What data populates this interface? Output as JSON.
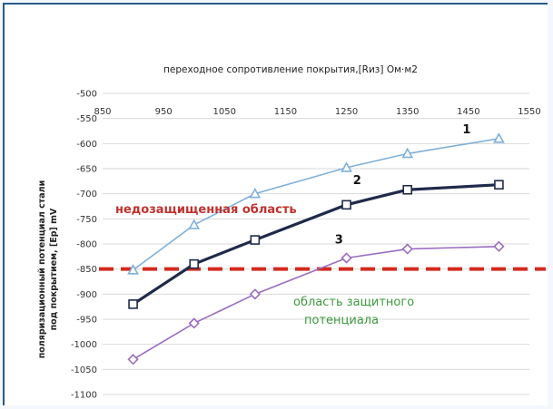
{
  "chart_data": {
    "type": "line",
    "title": "переходное сопротивление покрытия,[Rиз] Ом⋅м2",
    "ylabel_line1": "поляризационный потенциал стали",
    "ylabel_line2": "под покрытием, [Ep] mV",
    "xlim": [
      850,
      1550
    ],
    "xticks": [
      850,
      950,
      1050,
      1150,
      1250,
      1350,
      1450,
      1550
    ],
    "ylim": [
      -1100,
      -500
    ],
    "yticks": [
      -500,
      -550,
      -600,
      -650,
      -700,
      -750,
      -800,
      -850,
      -900,
      -950,
      -1000,
      -1050,
      -1100
    ],
    "grid": true,
    "threshold": {
      "value": -850,
      "color": "#d42a1e"
    },
    "series": [
      {
        "name": "1",
        "color": "#7fb0d8",
        "marker": "triangle",
        "x": [
          900,
          1000,
          1100,
          1250,
          1350,
          1500
        ],
        "y": [
          -852,
          -762,
          -700,
          -648,
          -620,
          -590
        ]
      },
      {
        "name": "2",
        "color": "#1f2a4a",
        "marker": "square",
        "x": [
          900,
          1000,
          1100,
          1250,
          1350,
          1500
        ],
        "y": [
          -920,
          -840,
          -792,
          -722,
          -692,
          -682
        ]
      },
      {
        "name": "3",
        "color": "#9a6cc0",
        "marker": "diamond",
        "x": [
          900,
          1000,
          1100,
          1250,
          1350,
          1500
        ],
        "y": [
          -1030,
          -958,
          -900,
          -828,
          -810,
          -805
        ]
      }
    ],
    "annotations": {
      "under_protected": {
        "text": "недозащищенная область",
        "color": "#c0312c"
      },
      "protected": {
        "line1": "область защитного",
        "line2": "потенциала",
        "color": "#3e9a3e"
      }
    }
  }
}
